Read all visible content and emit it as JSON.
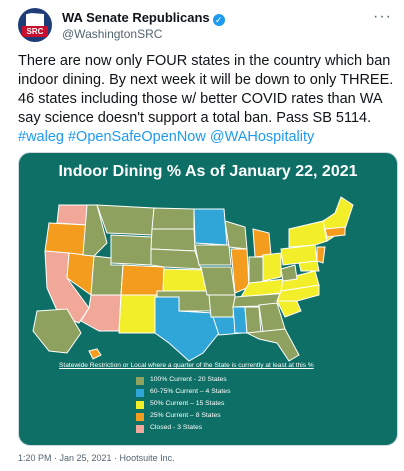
{
  "header": {
    "display_name": "WA Senate Republicans",
    "handle": "@WashingtonSRC",
    "avatar_text": "SRC",
    "verified_icon": "verified-badge-icon",
    "more_icon": "more-options-icon"
  },
  "tweet": {
    "text_plain": "There are now only FOUR states in the country which ban indoor dining. By next week it will be down to only THREE. 46 states including those w/ better COVID rates than WA say science doesn't support a total ban. Pass SB 5114. ",
    "hashtags": [
      "#waleg",
      "#OpenSafeOpenNow",
      "@WAHospitality"
    ]
  },
  "media": {
    "title": "Indoor Dining % As of January 22, 2021",
    "legend_heading": "Statewide Restriction or Local where a quarter of the State is currently at least at this %",
    "legend": [
      {
        "label": "100% Current - 20 States",
        "color": "#8fa15f"
      },
      {
        "label": "60-75% Current – 4 States",
        "color": "#2fa5d8"
      },
      {
        "label": "50% Current – 15 States",
        "color": "#f2ee2a"
      },
      {
        "label": "25% Current – 8 States",
        "color": "#f39c1e"
      },
      {
        "label": "Closed - 3 States",
        "color": "#f2a898"
      }
    ]
  },
  "footer": {
    "timestamp": "1:20 PM · Jan 25, 2021 · Hootsuite Inc."
  }
}
